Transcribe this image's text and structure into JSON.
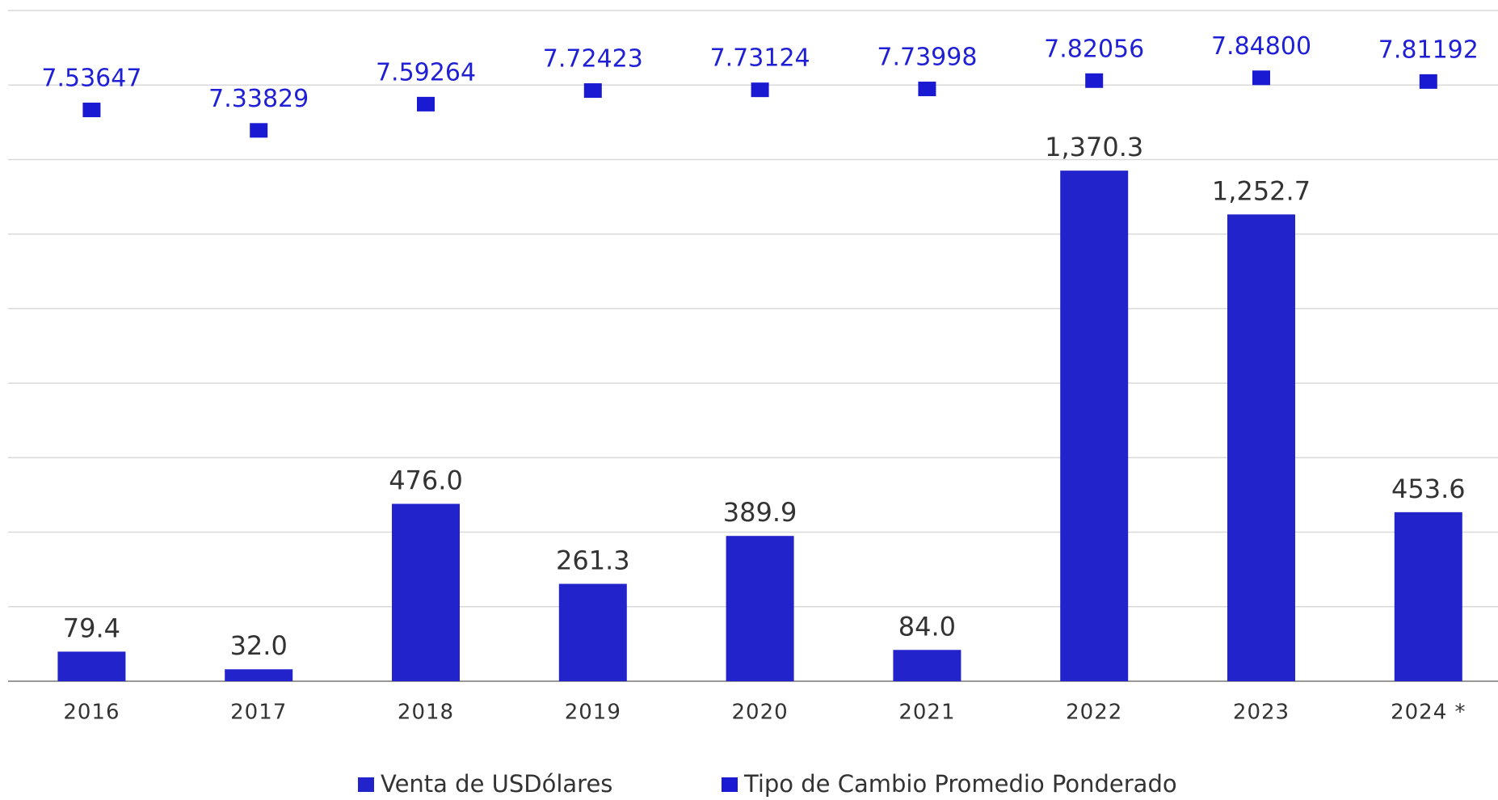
{
  "chart_data": {
    "type": "bar",
    "categories": [
      "2016",
      "2017",
      "2018",
      "2019",
      "2020",
      "2021",
      "2022",
      "2023",
      "2024 *"
    ],
    "ylim": [
      0,
      1800
    ],
    "yticks": [
      0,
      200,
      400,
      600,
      800,
      1000,
      1200,
      1400,
      1600,
      1800
    ],
    "y2lim": [
      2,
      8.5
    ],
    "grid": true,
    "legend": "bottom",
    "series": [
      {
        "name": "Venta de USDólares",
        "color": "#2323cc",
        "values": [
          79.4,
          32.0,
          476.0,
          261.3,
          389.9,
          84.0,
          1370.3,
          1252.7,
          453.6
        ],
        "value_labels": [
          "79.4",
          "32.0",
          "476.0",
          "261.3",
          "389.9",
          "84.0",
          "1,370.3",
          "1,252.7",
          "453.6"
        ]
      },
      {
        "name": "Tipo de Cambio Promedio Ponderado",
        "color": "#1a1ad2",
        "axis": "y2",
        "values": [
          7.53647,
          7.33829,
          7.59264,
          7.72423,
          7.73124,
          7.73998,
          7.82056,
          7.848,
          7.81192
        ],
        "value_labels": [
          "7.53647",
          "7.33829",
          "7.59264",
          "7.72423",
          "7.73124",
          "7.73998",
          "7.82056",
          "7.84800",
          "7.81192"
        ]
      }
    ]
  }
}
